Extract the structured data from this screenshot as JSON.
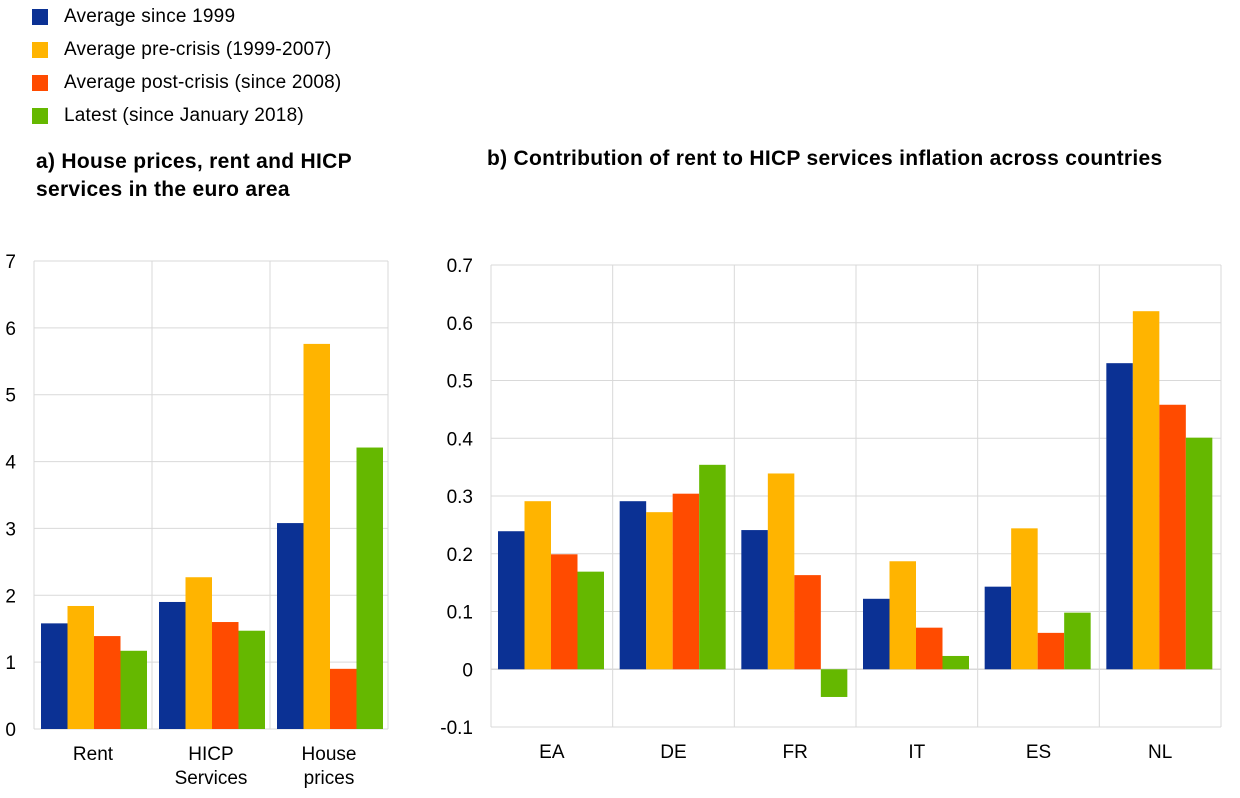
{
  "colors": {
    "series": [
      "#0b3194",
      "#ffb400",
      "#ff4b00",
      "#65b800"
    ],
    "grid": "#d9d9d9"
  },
  "legend": {
    "items": [
      "Average since 1999",
      "Average pre-crisis (1999-2007)",
      "Average post-crisis (since 2008)",
      "Latest (since January 2018)"
    ]
  },
  "chart_data": [
    {
      "type": "bar",
      "title": "a) House prices, rent and HICP services in the euro area",
      "categories": [
        [
          "Rent"
        ],
        [
          "HICP",
          "Services"
        ],
        [
          "House",
          "prices"
        ]
      ],
      "ylim": [
        0,
        7
      ],
      "yticks": [
        0,
        1,
        2,
        3,
        4,
        5,
        6,
        7
      ],
      "grid": true,
      "legend": "top-left",
      "series": [
        {
          "name": "Average since 1999",
          "values": [
            1.58,
            1.9,
            3.08
          ]
        },
        {
          "name": "Average pre-crisis (1999-2007)",
          "values": [
            1.84,
            2.27,
            5.76
          ]
        },
        {
          "name": "Average post-crisis (since 2008)",
          "values": [
            1.39,
            1.6,
            0.9
          ]
        },
        {
          "name": "Latest (since January 2018)",
          "values": [
            1.17,
            1.47,
            4.21
          ]
        }
      ]
    },
    {
      "type": "bar",
      "title": "b) Contribution of rent to HICP services inflation across countries",
      "categories": [
        [
          "EA"
        ],
        [
          "DE"
        ],
        [
          "FR"
        ],
        [
          "IT"
        ],
        [
          "ES"
        ],
        [
          "NL"
        ]
      ],
      "ylim": [
        -0.1,
        0.7
      ],
      "yticks": [
        "-0.1",
        "0",
        "0.1",
        "0.2",
        "0.3",
        "0.4",
        "0.5",
        "0.6",
        "0.7"
      ],
      "grid": true,
      "legend": "top-left",
      "series": [
        {
          "name": "Average since 1999",
          "values": [
            0.239,
            0.291,
            0.241,
            0.122,
            0.143,
            0.53
          ]
        },
        {
          "name": "Average pre-crisis (1999-2007)",
          "values": [
            0.291,
            0.272,
            0.339,
            0.187,
            0.244,
            0.62
          ]
        },
        {
          "name": "Average post-crisis (since 2008)",
          "values": [
            0.199,
            0.304,
            0.163,
            0.072,
            0.063,
            0.458
          ]
        },
        {
          "name": "Latest (since January 2018)",
          "values": [
            0.169,
            0.354,
            -0.048,
            0.023,
            0.098,
            0.401
          ]
        }
      ]
    }
  ]
}
